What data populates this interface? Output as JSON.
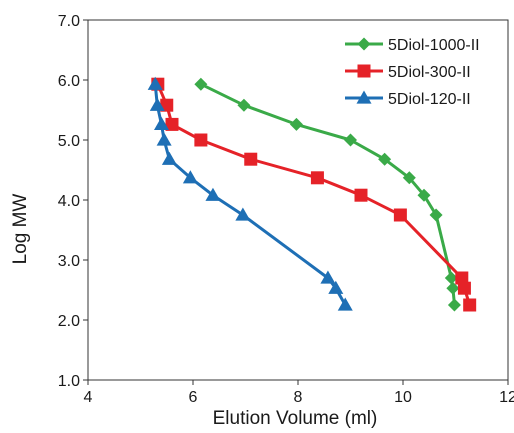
{
  "chart_data": {
    "type": "line",
    "title": "",
    "xlabel": "Elution Volume (ml)",
    "ylabel": "Log MW",
    "xlim": [
      4,
      12
    ],
    "ylim": [
      1.0,
      7.0
    ],
    "x_ticks": [
      "4",
      "6",
      "8",
      "10",
      "12"
    ],
    "y_ticks": [
      "1.0",
      "2.0",
      "3.0",
      "4.0",
      "5.0",
      "6.0",
      "7.0"
    ],
    "grid": false,
    "legend_position": "top-right",
    "series": [
      {
        "name": "5Diol-1000-II",
        "color": "#3aaa48",
        "marker": "diamond",
        "points": [
          [
            6.15,
            5.93
          ],
          [
            6.97,
            5.58
          ],
          [
            7.97,
            5.26
          ],
          [
            9.0,
            5.0
          ],
          [
            9.65,
            4.68
          ],
          [
            10.12,
            4.37
          ],
          [
            10.4,
            4.08
          ],
          [
            10.63,
            3.75
          ],
          [
            10.92,
            2.7
          ],
          [
            10.95,
            2.53
          ],
          [
            10.98,
            2.25
          ]
        ]
      },
      {
        "name": "5Diol-300-II",
        "color": "#e52228",
        "marker": "square",
        "points": [
          [
            5.33,
            5.93
          ],
          [
            5.5,
            5.58
          ],
          [
            5.6,
            5.26
          ],
          [
            6.15,
            5.0
          ],
          [
            7.1,
            4.68
          ],
          [
            8.37,
            4.37
          ],
          [
            9.2,
            4.08
          ],
          [
            9.95,
            3.75
          ],
          [
            11.12,
            2.7
          ],
          [
            11.17,
            2.53
          ],
          [
            11.27,
            2.25
          ]
        ]
      },
      {
        "name": "5Diol-120-II",
        "color": "#1e6fb5",
        "marker": "triangle",
        "points": [
          [
            5.28,
            5.93
          ],
          [
            5.32,
            5.58
          ],
          [
            5.4,
            5.26
          ],
          [
            5.45,
            5.0
          ],
          [
            5.55,
            4.68
          ],
          [
            5.95,
            4.37
          ],
          [
            6.38,
            4.08
          ],
          [
            6.95,
            3.75
          ],
          [
            8.57,
            2.7
          ],
          [
            8.72,
            2.53
          ],
          [
            8.9,
            2.25
          ]
        ]
      }
    ]
  }
}
